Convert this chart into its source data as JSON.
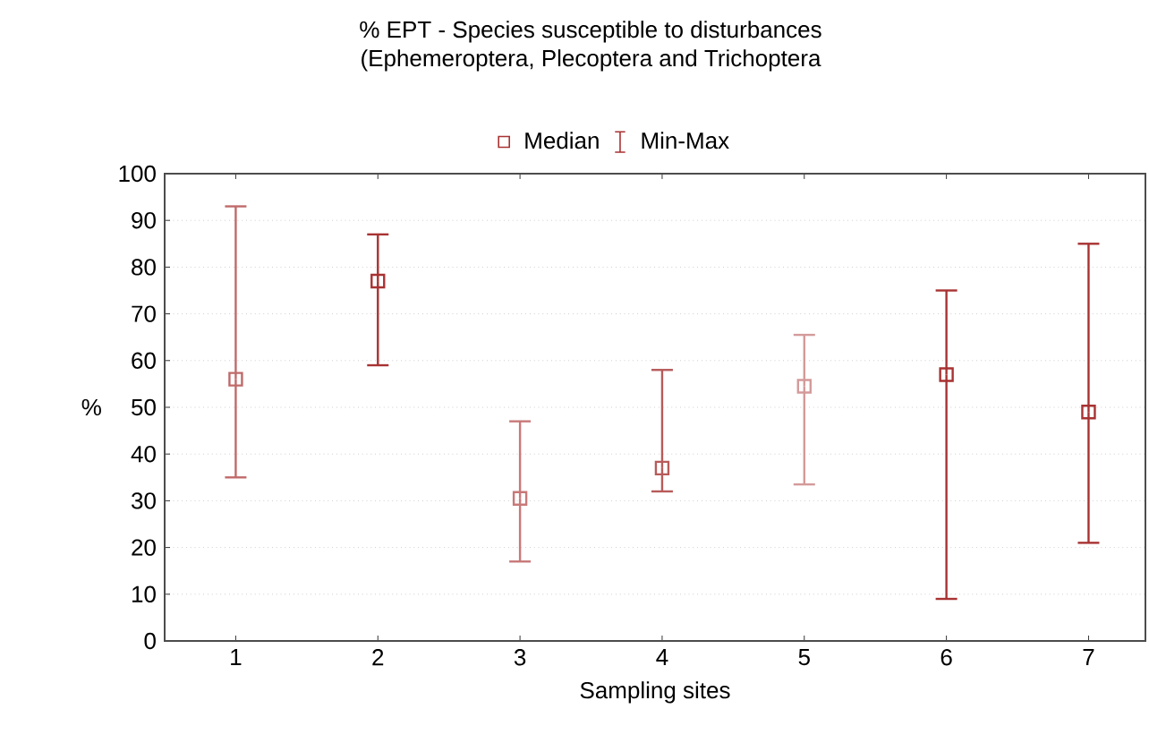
{
  "chart_data": {
    "type": "scatter",
    "title": "% EPT - Species susceptible to disturbances",
    "subtitle": "(Ephemeroptera, Plecoptera and Trichoptera",
    "xlabel": "Sampling sites",
    "ylabel": "%",
    "categories": [
      "1",
      "2",
      "3",
      "4",
      "5",
      "6",
      "7"
    ],
    "series": [
      {
        "name": "Median",
        "color": "#a83232",
        "colors": [
          "#c06a6a",
          "#a83232",
          "#c87878",
          "#b85a5a",
          "#d49a9a",
          "#a83232",
          "#a83232"
        ],
        "values": [
          56,
          77,
          30.5,
          37,
          54.5,
          57,
          49
        ],
        "errors": [
          [
            35,
            93
          ],
          [
            59,
            87
          ],
          [
            17,
            47
          ],
          [
            32,
            58
          ],
          [
            33.5,
            65.5
          ],
          [
            9,
            75
          ],
          [
            21,
            85
          ]
        ]
      }
    ],
    "annotations": [
      "Min-Max"
    ],
    "marker": "square",
    "legend": "top",
    "grid": "y",
    "ylim": [
      0,
      100
    ],
    "yticks": [
      0,
      10,
      20,
      30,
      40,
      50,
      60,
      70,
      80,
      90,
      100
    ]
  }
}
